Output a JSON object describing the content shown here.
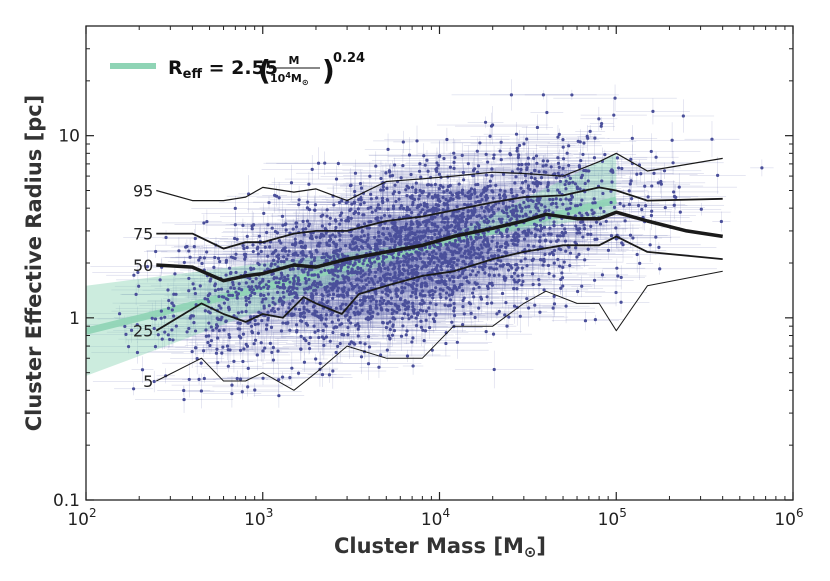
{
  "chart_data": {
    "type": "scatter",
    "title": "",
    "xlabel": "Cluster Mass [M",
    "xlabel_sun": "⊙",
    "xlabel_close": "]",
    "ylabel": "Cluster Effective Radius [pc]",
    "xscale": "log",
    "yscale": "log",
    "xlim": [
      100,
      1000000
    ],
    "ylim": [
      0.1,
      40
    ],
    "x_ticks": [
      {
        "value": 100,
        "base": "10",
        "exp": "2"
      },
      {
        "value": 1000,
        "base": "10",
        "exp": "3"
      },
      {
        "value": 10000,
        "base": "10",
        "exp": "4"
      },
      {
        "value": 100000,
        "base": "10",
        "exp": "5"
      },
      {
        "value": 1000000,
        "base": "10",
        "exp": "6"
      }
    ],
    "y_ticks": [
      {
        "value": 0.1,
        "label": "0.1"
      },
      {
        "value": 1,
        "label": "1"
      },
      {
        "value": 10,
        "label": "10"
      }
    ],
    "legend": {
      "position": "top-left",
      "r": "R",
      "sub": "eff",
      "eq": " = 2.55",
      "frac_num": "M",
      "frac_den": "10",
      "frac_den_exp": "4",
      "frac_den_tail": "M",
      "sun": "⊙",
      "power": "0.24"
    },
    "fit": {
      "normalization": 2.55,
      "slope": 0.24,
      "pivot_mass": 10000,
      "x_range": [
        100,
        100000
      ],
      "band_x": [
        100,
        10000,
        100000
      ],
      "band_low": [
        0.48,
        2.55,
        3.7
      ],
      "band_high": [
        1.5,
        2.65,
        8.0
      ],
      "color": "#8fd4b5"
    },
    "percentiles": [
      {
        "label": "95",
        "width": 1.2,
        "x": [
          250,
          400,
          600,
          800,
          1000,
          1500,
          2000,
          3000,
          5000,
          8000,
          12000,
          20000,
          30000,
          50000,
          80000,
          100000,
          150000,
          400000
        ],
        "y": [
          5.0,
          4.4,
          4.4,
          4.6,
          5.2,
          4.9,
          5.1,
          4.4,
          5.6,
          5.8,
          6.0,
          6.3,
          6.2,
          6.0,
          7.2,
          8.0,
          6.4,
          7.5
        ]
      },
      {
        "label": "75",
        "width": 1.8,
        "x": [
          250,
          400,
          600,
          800,
          1000,
          1500,
          2000,
          3000,
          5000,
          8000,
          12000,
          20000,
          30000,
          50000,
          80000,
          100000,
          150000,
          400000
        ],
        "y": [
          2.9,
          2.9,
          2.4,
          2.6,
          2.6,
          2.9,
          3.0,
          3.0,
          3.4,
          3.6,
          3.9,
          4.3,
          4.6,
          4.7,
          5.2,
          5.0,
          4.4,
          4.5
        ]
      },
      {
        "label": "50",
        "width": 3.5,
        "x": [
          250,
          400,
          600,
          800,
          1000,
          1500,
          2000,
          3000,
          5000,
          8000,
          12000,
          20000,
          30000,
          40000,
          60000,
          80000,
          100000,
          150000,
          250000,
          400000
        ],
        "y": [
          1.95,
          1.9,
          1.6,
          1.7,
          1.75,
          1.95,
          1.9,
          2.1,
          2.3,
          2.5,
          2.8,
          3.1,
          3.4,
          3.7,
          3.5,
          3.5,
          3.8,
          3.4,
          3.0,
          2.8
        ]
      },
      {
        "label": "25",
        "width": 1.8,
        "x": [
          250,
          450,
          600,
          800,
          1000,
          1300,
          1700,
          2000,
          2800,
          3500,
          5000,
          8000,
          12000,
          20000,
          30000,
          50000,
          80000,
          100000,
          150000,
          400000
        ],
        "y": [
          0.85,
          1.2,
          1.05,
          0.95,
          1.05,
          1.0,
          1.3,
          1.2,
          1.05,
          1.35,
          1.5,
          1.7,
          1.8,
          2.1,
          2.3,
          2.5,
          2.5,
          2.8,
          2.3,
          2.1
        ]
      },
      {
        "label": "5",
        "width": 1.0,
        "x": [
          250,
          450,
          600,
          800,
          1000,
          1500,
          2000,
          3000,
          5000,
          8000,
          12000,
          20000,
          30000,
          40000,
          60000,
          80000,
          100000,
          150000,
          400000
        ],
        "y": [
          0.45,
          0.6,
          0.45,
          0.45,
          0.5,
          0.4,
          0.5,
          0.7,
          0.6,
          0.6,
          0.9,
          0.9,
          1.2,
          1.4,
          1.2,
          1.2,
          0.85,
          1.5,
          1.8
        ]
      }
    ],
    "scatter": {
      "n_points": 3000,
      "color": "#4a4f9a",
      "errorbar_color": "#6f75b5",
      "x_range": [
        150,
        800000
      ],
      "y_range": [
        0.13,
        17
      ]
    }
  }
}
